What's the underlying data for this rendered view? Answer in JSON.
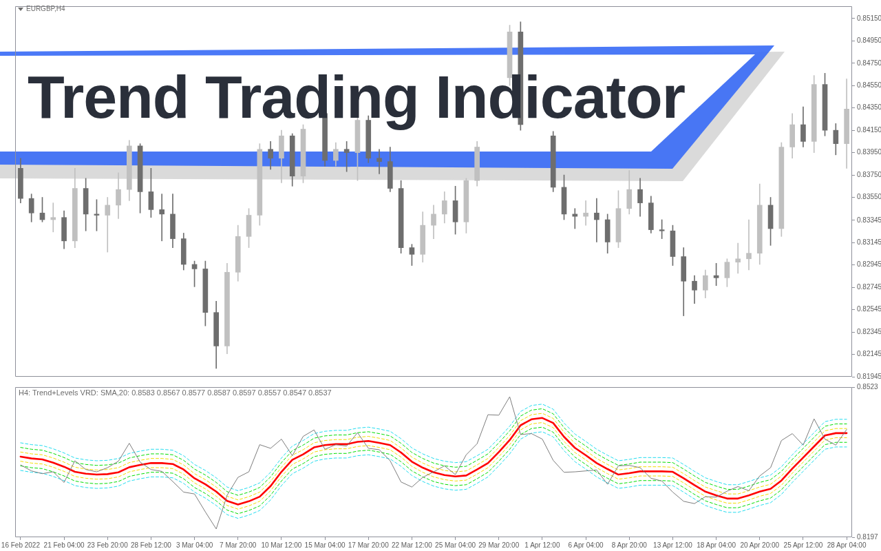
{
  "chart_data": [
    {
      "type": "candlestick",
      "title": "Trend Trading Indicator",
      "annotations": [
        "EURGBP,H4"
      ],
      "categories": [
        null,
        null,
        null,
        null,
        null,
        null,
        null,
        null,
        null,
        null,
        null,
        null,
        null,
        null,
        null,
        null,
        null,
        null,
        null,
        null,
        null,
        null,
        null,
        null,
        null,
        null,
        null,
        null,
        null,
        null,
        null,
        null,
        null,
        null,
        null,
        null,
        null,
        null,
        null,
        null,
        null,
        null,
        null,
        null,
        null,
        null,
        null,
        null,
        null,
        null,
        null,
        null,
        null,
        null,
        null,
        null,
        null,
        null,
        null,
        null,
        null,
        null,
        null,
        null,
        null,
        null,
        null,
        null,
        null,
        null,
        null,
        null,
        null,
        null,
        null,
        null,
        null
      ],
      "ohlc": [
        [
          0.8381,
          0.839,
          0.835,
          0.8354
        ],
        [
          0.8354,
          0.8358,
          0.8333,
          0.8341
        ],
        [
          0.8341,
          0.8355,
          0.8333,
          0.8335
        ],
        [
          0.8335,
          0.835,
          0.8324,
          0.8337
        ],
        [
          0.8337,
          0.8343,
          0.8309,
          0.8316
        ],
        [
          0.8316,
          0.8381,
          0.831,
          0.8363
        ],
        [
          0.8363,
          0.8372,
          0.8325,
          0.834
        ],
        [
          0.834,
          0.8353,
          0.8325,
          0.8339
        ],
        [
          0.8339,
          0.8355,
          0.8306,
          0.8348
        ],
        [
          0.8348,
          0.8377,
          0.8336,
          0.8362
        ],
        [
          0.8362,
          0.8406,
          0.8352,
          0.8401
        ],
        [
          0.8401,
          0.8403,
          0.8341,
          0.836
        ],
        [
          0.836,
          0.8381,
          0.8337,
          0.8344
        ],
        [
          0.8344,
          0.8358,
          0.8316,
          0.834
        ],
        [
          0.834,
          0.8358,
          0.831,
          0.8318
        ],
        [
          0.8318,
          0.8323,
          0.829,
          0.8295
        ],
        [
          0.8295,
          0.8298,
          0.8275,
          0.8291
        ],
        [
          0.8291,
          0.8298,
          0.824,
          0.8252
        ],
        [
          0.8252,
          0.8262,
          0.8202,
          0.8222
        ],
        [
          0.8222,
          0.8296,
          0.8215,
          0.8288
        ],
        [
          0.8288,
          0.833,
          0.828,
          0.832
        ],
        [
          0.832,
          0.8345,
          0.831,
          0.8339
        ],
        [
          0.8339,
          0.8403,
          0.833,
          0.8398
        ],
        [
          0.8398,
          0.8405,
          0.838,
          0.839
        ],
        [
          0.839,
          0.8415,
          0.8368,
          0.841
        ],
        [
          0.841,
          0.8412,
          0.8365,
          0.8374
        ],
        [
          0.8374,
          0.842,
          0.8368,
          0.8416
        ],
        null,
        [
          0.843,
          0.844,
          0.8383,
          0.8388
        ],
        [
          0.8388,
          0.8404,
          0.8383,
          0.8398
        ],
        [
          0.8398,
          0.8405,
          0.8378,
          0.8395
        ],
        [
          0.8395,
          0.8452,
          0.837,
          0.8424
        ],
        [
          0.8424,
          0.8428,
          0.8386,
          0.839
        ],
        [
          0.839,
          0.8398,
          0.8376,
          0.8387
        ],
        [
          0.8387,
          0.84,
          0.836,
          0.8363
        ],
        [
          0.8363,
          0.837,
          0.8305,
          0.831
        ],
        [
          0.831,
          0.8313,
          0.8294,
          0.8304
        ],
        [
          0.8304,
          0.8342,
          0.8297,
          0.833
        ],
        [
          0.833,
          0.8348,
          0.8318,
          0.834
        ],
        [
          0.834,
          0.836,
          0.8332,
          0.8352
        ],
        [
          0.8352,
          0.8365,
          0.8322,
          0.8333
        ],
        [
          0.8333,
          0.8372,
          0.8323,
          0.837
        ],
        [
          0.837,
          0.8405,
          0.8365,
          0.84
        ],
        null,
        null,
        [
          0.8462,
          0.8509,
          0.8455,
          0.8503
        ],
        [
          0.8503,
          0.8512,
          0.8415,
          0.842
        ],
        null,
        null,
        [
          0.841,
          0.8414,
          0.836,
          0.8364
        ],
        [
          0.8364,
          0.8375,
          0.8335,
          0.834
        ],
        [
          0.834,
          0.8345,
          0.8327,
          0.8338
        ],
        [
          0.8338,
          0.8352,
          0.833,
          0.8341
        ],
        [
          0.8341,
          0.8354,
          0.8315,
          0.8335
        ],
        [
          0.8335,
          0.834,
          0.8305,
          0.8315
        ],
        [
          0.8315,
          0.8361,
          0.831,
          0.8345
        ],
        [
          0.8345,
          0.8379,
          0.834,
          0.8362
        ],
        [
          0.8362,
          0.8372,
          0.8338,
          0.835
        ],
        [
          0.835,
          0.8356,
          0.8323,
          0.8326
        ],
        [
          0.8326,
          0.8335,
          0.8318,
          0.8325
        ],
        [
          0.8325,
          0.833,
          0.8294,
          0.8302
        ],
        [
          0.8302,
          0.831,
          0.8249,
          0.828
        ],
        [
          0.828,
          0.8285,
          0.826,
          0.8272
        ],
        [
          0.8272,
          0.829,
          0.8265,
          0.8285
        ],
        [
          0.8285,
          0.8296,
          0.8276,
          0.8283
        ],
        [
          0.8283,
          0.83,
          0.8275,
          0.8297
        ],
        [
          0.8297,
          0.8314,
          0.8287,
          0.83
        ],
        [
          0.83,
          0.8335,
          0.829,
          0.8305
        ],
        [
          0.8305,
          0.8367,
          0.8295,
          0.8348
        ],
        [
          0.8348,
          0.8355,
          0.8312,
          0.8327
        ],
        [
          0.8327,
          0.8404,
          0.832,
          0.84
        ],
        [
          0.84,
          0.843,
          0.839,
          0.842
        ],
        [
          0.842,
          0.8436,
          0.84,
          0.8405
        ],
        [
          0.8405,
          0.8464,
          0.8395,
          0.8456
        ],
        [
          0.8456,
          0.8466,
          0.841,
          0.8415
        ],
        [
          0.8415,
          0.8421,
          0.8393,
          0.8403
        ],
        [
          0.8403,
          0.8461,
          0.8381,
          0.8434
        ]
      ],
      "colors": [
        "#6e6e6e",
        "#6e6e6e",
        "#6e6e6e",
        "#c0c0c0",
        "#6e6e6e",
        "#c0c0c0",
        "#6e6e6e",
        "#6e6e6e",
        "#c0c0c0",
        "#c0c0c0",
        "#c0c0c0",
        "#6e6e6e",
        "#6e6e6e",
        "#6e6e6e",
        "#6e6e6e",
        "#6e6e6e",
        "#6e6e6e",
        "#6e6e6e",
        "#6e6e6e",
        "#c0c0c0",
        "#c0c0c0",
        "#c0c0c0",
        "#c0c0c0",
        "#6e6e6e",
        "#c0c0c0",
        "#6e6e6e",
        "#c0c0c0",
        null,
        "#6e6e6e",
        "#c0c0c0",
        "#6e6e6e",
        "#c0c0c0",
        "#6e6e6e",
        "#6e6e6e",
        "#6e6e6e",
        "#6e6e6e",
        "#6e6e6e",
        "#c0c0c0",
        "#c0c0c0",
        "#c0c0c0",
        "#6e6e6e",
        "#c0c0c0",
        "#c0c0c0",
        null,
        null,
        "#c0c0c0",
        "#6e6e6e",
        null,
        null,
        "#6e6e6e",
        "#6e6e6e",
        "#6e6e6e",
        "#c0c0c0",
        "#6e6e6e",
        "#6e6e6e",
        "#c0c0c0",
        "#c0c0c0",
        "#6e6e6e",
        "#6e6e6e",
        "#6e6e6e",
        "#6e6e6e",
        "#6e6e6e",
        "#6e6e6e",
        "#c0c0c0",
        "#6e6e6e",
        "#c0c0c0",
        "#c0c0c0",
        "#c0c0c0",
        "#c0c0c0",
        "#6e6e6e",
        "#c0c0c0",
        "#c0c0c0",
        "#6e6e6e",
        "#c0c0c0",
        "#6e6e6e",
        "#6e6e6e",
        "#c0c0c0"
      ],
      "ylim": [
        0.81945,
        0.8526
      ],
      "yticks": [
        {
          "value": 0.8515,
          "label": "0.85150"
        },
        {
          "value": 0.8495,
          "label": "0.84950"
        },
        {
          "value": 0.8475,
          "label": "0.84750"
        },
        {
          "value": 0.8455,
          "label": "0.84550"
        },
        {
          "value": 0.8435,
          "label": "0.84350"
        },
        {
          "value": 0.8415,
          "label": "0.84150"
        },
        {
          "value": 0.8395,
          "label": "0.83950"
        },
        {
          "value": 0.8375,
          "label": "0.83750"
        },
        {
          "value": 0.8355,
          "label": "0.83550"
        },
        0.83345,
        0.83145,
        0.82945,
        0.82745,
        0.82545,
        0.82345,
        0.82145,
        0.81945
      ],
      "tick_labels": "y"
    },
    {
      "type": "line",
      "annotations": [
        "H4: Trend+Levels VRD: SMA,20: 0.8583 0.8567 0.8577 0.8587 0.8597 0.8557 0.8547 0.8537"
      ],
      "categories": [
        "16 Feb 2022",
        null,
        null,
        null,
        "21 Feb 04:00",
        null,
        null,
        null,
        "23 Feb 20:00",
        null,
        null,
        null,
        "28 Feb 12:00",
        null,
        null,
        null,
        "3 Mar 04:00",
        null,
        null,
        null,
        "7 Mar 20:00",
        null,
        null,
        null,
        "10 Mar 12:00",
        null,
        null,
        null,
        "15 Mar 04:00",
        null,
        null,
        null,
        "17 Mar 20:00",
        null,
        null,
        null,
        "22 Mar 12:00",
        null,
        null,
        null,
        "25 Mar 04:00",
        null,
        null,
        null,
        "29 Mar 20:00",
        null,
        null,
        null,
        "1 Apr 12:00",
        null,
        null,
        null,
        "6 Apr 04:00",
        null,
        null,
        null,
        "8 Apr 20:00",
        null,
        null,
        null,
        "13 Apr 12:00",
        null,
        null,
        null,
        "18 Apr 04:00",
        null,
        null,
        null,
        "20 Apr 20:00",
        null,
        null,
        null,
        "25 Apr 12:00",
        null,
        null,
        null,
        "28 Apr 04:00"
      ],
      "ylim": [
        0.8197,
        0.8523
      ],
      "yticks": [
        0.8523,
        0.8197
      ],
      "marker": "none",
      "series": [
        {
          "color": "#7d7d7d",
          "values": [
            0.8354,
            0.8341,
            0.8335,
            0.8339,
            0.8316,
            0.8363,
            0.8344,
            0.8339,
            0.8348,
            0.8362,
            0.8401,
            0.836,
            0.8344,
            0.834,
            0.8318,
            0.8295,
            0.8291,
            0.8252,
            0.8215,
            0.8288,
            0.8327,
            0.8339,
            0.8398,
            0.839,
            0.841,
            0.8374,
            0.8416,
            0.843,
            0.8388,
            0.8398,
            0.8395,
            0.8424,
            0.839,
            0.8387,
            0.8363,
            0.8317,
            0.8306,
            0.8327,
            0.8339,
            0.8352,
            0.8333,
            0.8376,
            0.84,
            0.8463,
            0.8462,
            0.8502,
            0.842,
            0.8422,
            0.841,
            0.8364,
            0.8338,
            0.8339,
            0.8341,
            0.8343,
            0.8312,
            0.8352,
            0.8353,
            0.8348,
            0.8325,
            0.8319,
            0.8295,
            0.8275,
            0.827,
            0.8285,
            0.8284,
            0.8297,
            0.8307,
            0.8298,
            0.833,
            0.8348,
            0.8407,
            0.8422,
            0.8397,
            0.8454,
            0.841,
            0.8397,
            0.8431
          ]
        },
        {
          "color": "#ff0000",
          "values": [
            0.8372,
            0.8368,
            0.8366,
            0.8359,
            0.835,
            0.8339,
            0.8335,
            0.8333,
            0.8334,
            0.8338,
            0.8349,
            0.8354,
            0.8358,
            0.8358,
            0.8356,
            0.8344,
            0.8325,
            0.8312,
            0.8296,
            0.8276,
            0.8268,
            0.8275,
            0.8285,
            0.8308,
            0.8339,
            0.8365,
            0.8377,
            0.8392,
            0.8397,
            0.8399,
            0.8399,
            0.8404,
            0.8406,
            0.8402,
            0.8397,
            0.8381,
            0.8361,
            0.8348,
            0.8338,
            0.8332,
            0.8329,
            0.8331,
            0.8344,
            0.8358,
            0.8382,
            0.8408,
            0.844,
            0.8453,
            0.8456,
            0.8445,
            0.8415,
            0.8391,
            0.8375,
            0.8358,
            0.8345,
            0.8333,
            0.8336,
            0.834,
            0.834,
            0.834,
            0.8339,
            0.8325,
            0.831,
            0.8296,
            0.8288,
            0.8281,
            0.8281,
            0.8288,
            0.8296,
            0.8302,
            0.832,
            0.8346,
            0.837,
            0.8394,
            0.8418,
            0.8423,
            0.8423
          ]
        },
        {
          "color": "#f2dc00",
          "line_style": "dashed",
          "values": [
            0.8382,
            0.8378,
            0.8376,
            0.8369,
            0.836,
            0.8349,
            0.8345,
            0.8343,
            0.8344,
            0.8348,
            0.8359,
            0.8364,
            0.8368,
            0.8368,
            0.8366,
            0.8354,
            0.8335,
            0.8322,
            0.8306,
            0.8286,
            0.8278,
            0.8285,
            0.8295,
            0.8318,
            0.8349,
            0.8375,
            0.8387,
            0.8402,
            0.8407,
            0.8409,
            0.8409,
            0.8414,
            0.8416,
            0.8412,
            0.8407,
            0.8391,
            0.8371,
            0.8358,
            0.8348,
            0.8342,
            0.8339,
            0.8341,
            0.8354,
            0.8368,
            0.8392,
            0.8418,
            0.845,
            0.8463,
            0.8466,
            0.8455,
            0.8425,
            0.8401,
            0.8385,
            0.8368,
            0.8355,
            0.8343,
            0.8346,
            0.835,
            0.835,
            0.835,
            0.8349,
            0.8335,
            0.832,
            0.8306,
            0.8298,
            0.8291,
            0.8291,
            0.8298,
            0.8306,
            0.8312,
            0.833,
            0.8356,
            0.838,
            0.8404,
            0.8428,
            0.8433,
            0.8433
          ]
        },
        {
          "color": "#00dd00",
          "line_style": "dashed",
          "values": [
            0.8392,
            0.8388,
            0.8386,
            0.8379,
            0.837,
            0.8359,
            0.8355,
            0.8353,
            0.8354,
            0.8358,
            0.8369,
            0.8374,
            0.8378,
            0.8378,
            0.8376,
            0.8364,
            0.8345,
            0.8332,
            0.8316,
            0.8296,
            0.8288,
            0.8295,
            0.8305,
            0.8328,
            0.8359,
            0.8385,
            0.8397,
            0.8412,
            0.8417,
            0.8419,
            0.8419,
            0.8424,
            0.8426,
            0.8422,
            0.8417,
            0.8401,
            0.8381,
            0.8368,
            0.8358,
            0.8352,
            0.8349,
            0.8351,
            0.8364,
            0.8378,
            0.8402,
            0.8428,
            0.846,
            0.8473,
            0.8476,
            0.8465,
            0.8435,
            0.8411,
            0.8395,
            0.8378,
            0.8365,
            0.8353,
            0.8356,
            0.836,
            0.836,
            0.836,
            0.8359,
            0.8345,
            0.833,
            0.8316,
            0.8308,
            0.8301,
            0.8301,
            0.8308,
            0.8316,
            0.8322,
            0.834,
            0.8366,
            0.839,
            0.8414,
            0.8438,
            0.8443,
            0.8443
          ]
        },
        {
          "color": "#22dcef",
          "line_style": "dashed",
          "values": [
            0.8402,
            0.8398,
            0.8396,
            0.8389,
            0.838,
            0.8369,
            0.8365,
            0.8363,
            0.8364,
            0.8368,
            0.8379,
            0.8384,
            0.8388,
            0.8388,
            0.8386,
            0.8374,
            0.8355,
            0.8342,
            0.8326,
            0.8306,
            0.8298,
            0.8305,
            0.8315,
            0.8338,
            0.8369,
            0.8395,
            0.8407,
            0.8422,
            0.8427,
            0.8429,
            0.8429,
            0.8434,
            0.8436,
            0.8432,
            0.8427,
            0.8411,
            0.8391,
            0.8378,
            0.8368,
            0.8362,
            0.8359,
            0.8361,
            0.8374,
            0.8388,
            0.8412,
            0.8438,
            0.847,
            0.8483,
            0.8486,
            0.8475,
            0.8445,
            0.8421,
            0.8405,
            0.8388,
            0.8375,
            0.8363,
            0.8366,
            0.837,
            0.837,
            0.837,
            0.8369,
            0.8355,
            0.834,
            0.8326,
            0.8318,
            0.8311,
            0.8311,
            0.8318,
            0.8326,
            0.8332,
            0.835,
            0.8376,
            0.84,
            0.8424,
            0.8448,
            0.8453,
            0.8453
          ]
        },
        {
          "color": "#f2dc00",
          "line_style": "dashed",
          "values": [
            0.8362,
            0.8358,
            0.8356,
            0.8349,
            0.834,
            0.8329,
            0.8325,
            0.8323,
            0.8324,
            0.8328,
            0.8339,
            0.8344,
            0.8348,
            0.8348,
            0.8346,
            0.8334,
            0.8315,
            0.8302,
            0.8286,
            0.8266,
            0.8258,
            0.8265,
            0.8275,
            0.8298,
            0.8329,
            0.8355,
            0.8367,
            0.8382,
            0.8387,
            0.8389,
            0.8389,
            0.8394,
            0.8396,
            0.8392,
            0.8387,
            0.8371,
            0.8351,
            0.8338,
            0.8328,
            0.8322,
            0.8319,
            0.8321,
            0.8334,
            0.8348,
            0.8372,
            0.8398,
            0.843,
            0.8443,
            0.8446,
            0.8435,
            0.8405,
            0.8381,
            0.8365,
            0.8348,
            0.8335,
            0.8323,
            0.8326,
            0.833,
            0.833,
            0.833,
            0.8329,
            0.8315,
            0.83,
            0.8286,
            0.8278,
            0.8271,
            0.8271,
            0.8278,
            0.8286,
            0.8292,
            0.831,
            0.8336,
            0.836,
            0.8384,
            0.8408,
            0.8413,
            0.8413
          ]
        },
        {
          "color": "#00dd00",
          "line_style": "dashed",
          "values": [
            0.8352,
            0.8348,
            0.8346,
            0.8339,
            0.833,
            0.8319,
            0.8315,
            0.8313,
            0.8314,
            0.8318,
            0.8329,
            0.8334,
            0.8338,
            0.8338,
            0.8336,
            0.8324,
            0.8305,
            0.8292,
            0.8276,
            0.8256,
            0.8248,
            0.8255,
            0.8265,
            0.8288,
            0.8319,
            0.8345,
            0.8357,
            0.8372,
            0.8377,
            0.8379,
            0.8379,
            0.8384,
            0.8386,
            0.8382,
            0.8377,
            0.8361,
            0.8341,
            0.8328,
            0.8318,
            0.8312,
            0.8309,
            0.8311,
            0.8324,
            0.8338,
            0.8362,
            0.8388,
            0.842,
            0.8433,
            0.8436,
            0.8425,
            0.8395,
            0.8371,
            0.8355,
            0.8338,
            0.8325,
            0.8313,
            0.8316,
            0.832,
            0.832,
            0.832,
            0.8319,
            0.8305,
            0.829,
            0.8276,
            0.8268,
            0.8261,
            0.8261,
            0.8268,
            0.8276,
            0.8282,
            0.83,
            0.8326,
            0.835,
            0.8374,
            0.8398,
            0.8403,
            0.8403
          ]
        },
        {
          "color": "#22dcef",
          "line_style": "dashed",
          "values": [
            0.8342,
            0.8338,
            0.8336,
            0.8329,
            0.832,
            0.8309,
            0.8305,
            0.8303,
            0.8304,
            0.8308,
            0.8319,
            0.8324,
            0.8328,
            0.8328,
            0.8326,
            0.8314,
            0.8295,
            0.8282,
            0.8266,
            0.8246,
            0.8238,
            0.8245,
            0.8255,
            0.8278,
            0.8309,
            0.8335,
            0.8347,
            0.8362,
            0.8367,
            0.8369,
            0.8369,
            0.8374,
            0.8376,
            0.8372,
            0.8367,
            0.8351,
            0.8331,
            0.8318,
            0.8308,
            0.8302,
            0.8299,
            0.8301,
            0.8314,
            0.8328,
            0.8352,
            0.8378,
            0.841,
            0.8423,
            0.8426,
            0.8415,
            0.8385,
            0.8361,
            0.8345,
            0.8328,
            0.8315,
            0.8303,
            0.8306,
            0.831,
            0.831,
            0.831,
            0.8309,
            0.8295,
            0.828,
            0.8266,
            0.8258,
            0.8251,
            0.8251,
            0.8258,
            0.8266,
            0.8272,
            0.829,
            0.8316,
            0.834,
            0.8364,
            0.8388,
            0.8393,
            0.8393
          ]
        }
      ]
    }
  ]
}
